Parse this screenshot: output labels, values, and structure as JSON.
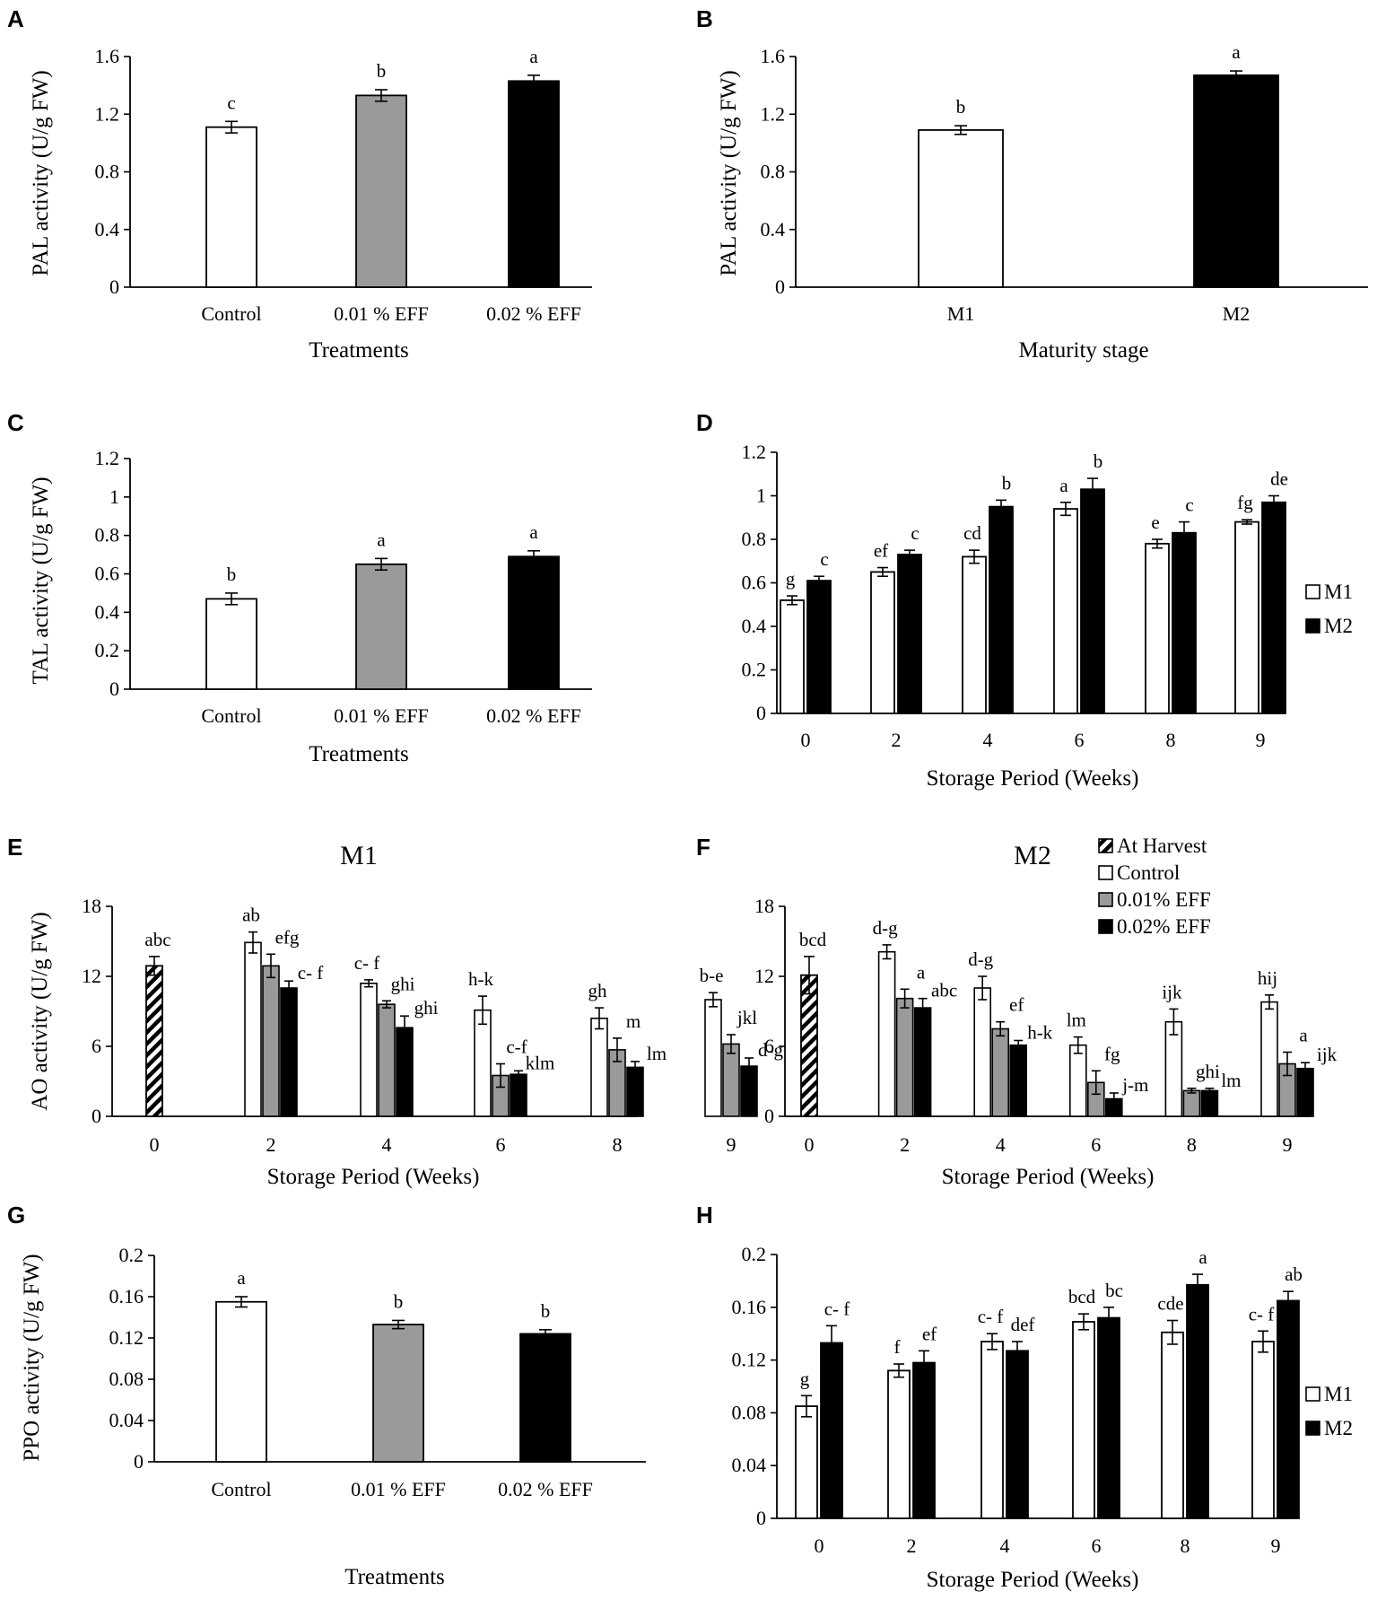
{
  "chart_data": [
    {
      "panel": "A",
      "type": "bar",
      "categories": [
        "Control",
        "0.01 % EFF",
        "0.02 % EFF"
      ],
      "series": [
        {
          "name": "PAL",
          "values": [
            1.11,
            1.33,
            1.43
          ],
          "errors": [
            0.04,
            0.04,
            0.04
          ]
        }
      ],
      "sig": [
        "c",
        "b",
        "a"
      ],
      "ylim": [
        0,
        1.6
      ],
      "ticks": [
        "0",
        "0.4",
        "0.8",
        "1.2",
        "1.6"
      ],
      "tick_values": [
        0,
        0.4,
        0.8,
        1.2,
        1.6
      ],
      "xlabel": "Treatments",
      "ylabel": "PAL activity (U/g FW)",
      "title": ""
    },
    {
      "panel": "B",
      "type": "bar",
      "categories": [
        "M1",
        "M2"
      ],
      "series": [
        {
          "name": "PAL",
          "values": [
            1.09,
            1.47
          ],
          "errors": [
            0.03,
            0.03
          ]
        }
      ],
      "sig": [
        "b",
        "a"
      ],
      "ylim": [
        0,
        1.6
      ],
      "ticks": [
        "0",
        "0.4",
        "0.8",
        "1.2",
        "1.6"
      ],
      "tick_values": [
        0,
        0.4,
        0.8,
        1.2,
        1.6
      ],
      "xlabel": "Maturity stage",
      "ylabel": "PAL activity (U/g FW)",
      "title": ""
    },
    {
      "panel": "C",
      "type": "bar",
      "categories": [
        "Control",
        "0.01 % EFF",
        "0.02 % EFF"
      ],
      "series": [
        {
          "name": "TAL",
          "values": [
            0.47,
            0.65,
            0.69
          ],
          "errors": [
            0.03,
            0.03,
            0.03
          ]
        }
      ],
      "sig": [
        "b",
        "a",
        "a"
      ],
      "ylim": [
        0,
        1.2
      ],
      "ticks": [
        "0",
        "0.2",
        "0.4",
        "0.6",
        "0.8",
        "1",
        "1.2"
      ],
      "tick_values": [
        0,
        0.2,
        0.4,
        0.6,
        0.8,
        1.0,
        1.2
      ],
      "xlabel": "Treatments",
      "ylabel": "TAL activity (U/g FW)",
      "title": ""
    },
    {
      "panel": "D",
      "type": "bar",
      "categories": [
        "0",
        "2",
        "4",
        "6",
        "8",
        "9"
      ],
      "series": [
        {
          "name": "M1",
          "values": [
            0.52,
            0.65,
            0.72,
            0.94,
            0.78,
            0.88
          ],
          "errors": [
            0.02,
            0.02,
            0.03,
            0.03,
            0.02,
            0.01
          ],
          "sig": [
            "g",
            "ef",
            "cd",
            "a",
            "e",
            "fg"
          ]
        },
        {
          "name": "M2",
          "values": [
            0.61,
            0.73,
            0.95,
            1.03,
            0.83,
            0.97
          ],
          "errors": [
            0.02,
            0.02,
            0.03,
            0.05,
            0.05,
            0.03
          ],
          "sig": [
            "c",
            "c",
            "b",
            "b",
            "c",
            "de"
          ]
        }
      ],
      "ylim": [
        0,
        1.2
      ],
      "ticks": [
        "0",
        "0.2",
        "0.4",
        "0.6",
        "0.8",
        "1",
        "1.2"
      ],
      "tick_values": [
        0,
        0.2,
        0.4,
        0.6,
        0.8,
        1.0,
        1.2
      ],
      "xlabel": "Storage Period (Weeks)",
      "ylabel": "",
      "title": "",
      "legend": [
        "M1",
        "M2"
      ]
    },
    {
      "panel": "E",
      "type": "bar",
      "categories": [
        "0",
        "2",
        "4",
        "6",
        "8",
        "9"
      ],
      "harvest": {
        "value": 12.9,
        "error": 0.8,
        "sig": "abc"
      },
      "series": [
        {
          "name": "Control",
          "values": [
            null,
            14.9,
            11.4,
            9.1,
            8.4,
            10.0
          ],
          "errors": [
            null,
            0.9,
            0.3,
            1.2,
            0.9,
            0.6
          ],
          "sig": [
            null,
            "ab",
            "c- f",
            "h-k",
            "gh",
            "b-e"
          ]
        },
        {
          "name": "0.01% EFF",
          "values": [
            null,
            12.9,
            9.6,
            3.5,
            5.7,
            6.2
          ],
          "errors": [
            null,
            1.0,
            0.3,
            1.0,
            1.0,
            0.8
          ],
          "sig": [
            null,
            "efg",
            "ghi",
            "c-f",
            "m",
            "jkl"
          ]
        },
        {
          "name": "0.02% EFF",
          "values": [
            null,
            11.0,
            7.6,
            3.6,
            4.2,
            4.3
          ],
          "errors": [
            null,
            0.6,
            1.0,
            0.3,
            0.5,
            0.7
          ],
          "sig": [
            null,
            "c- f",
            "ghi",
            "klm",
            "lm",
            "d-g"
          ]
        }
      ],
      "ylim": [
        0,
        18
      ],
      "ticks": [
        "0",
        "6",
        "12",
        "18"
      ],
      "tick_values": [
        0,
        6,
        12,
        18
      ],
      "xlabel": "Storage Period (Weeks)",
      "ylabel": "AO activity (U/g FW)",
      "title": "M1"
    },
    {
      "panel": "F",
      "type": "bar",
      "categories": [
        "0",
        "2",
        "4",
        "6",
        "8",
        "9"
      ],
      "harvest": {
        "value": 12.1,
        "error": 1.6,
        "sig": "bcd"
      },
      "series": [
        {
          "name": "Control",
          "values": [
            null,
            14.1,
            11.0,
            6.1,
            8.1,
            9.8
          ],
          "errors": [
            null,
            0.6,
            1.0,
            0.7,
            1.1,
            0.6
          ],
          "sig": [
            null,
            "d-g",
            "d-g",
            "lm",
            "ijk",
            "hij"
          ]
        },
        {
          "name": "0.01% EFF",
          "values": [
            null,
            10.1,
            7.5,
            2.9,
            2.2,
            4.5
          ],
          "errors": [
            null,
            0.8,
            0.6,
            1.0,
            0.2,
            1.0
          ],
          "sig": [
            null,
            "a",
            "ef",
            "fg",
            "ghi",
            "a"
          ]
        },
        {
          "name": "0.02% EFF",
          "values": [
            null,
            9.3,
            6.1,
            1.5,
            2.2,
            4.1
          ],
          "errors": [
            null,
            0.8,
            0.4,
            0.5,
            0.2,
            0.5
          ],
          "sig": [
            null,
            "abc",
            "h-k",
            "j-m",
            "lm",
            "ijk"
          ]
        }
      ],
      "ylim": [
        0,
        18
      ],
      "ticks": [
        "0",
        "6",
        "12",
        "18"
      ],
      "tick_values": [
        0,
        6,
        12,
        18
      ],
      "xlabel": "Storage Period (Weeks)",
      "ylabel": "",
      "title": "M2",
      "legend": [
        "At Harvest",
        "Control",
        "0.01% EFF",
        "0.02% EFF"
      ]
    },
    {
      "panel": "G",
      "type": "bar",
      "categories": [
        "Control",
        "0.01 % EFF",
        "0.02 % EFF"
      ],
      "series": [
        {
          "name": "PPO",
          "values": [
            0.155,
            0.133,
            0.124
          ],
          "errors": [
            0.005,
            0.004,
            0.004
          ]
        }
      ],
      "sig": [
        "a",
        "b",
        "b"
      ],
      "ylim": [
        0,
        0.2
      ],
      "ticks": [
        "0",
        "0.04",
        "0.08",
        "0.12",
        "0.16",
        "0.2"
      ],
      "tick_values": [
        0,
        0.04,
        0.08,
        0.12,
        0.16,
        0.2
      ],
      "xlabel": "Treatments",
      "ylabel": "PPO activity (U/g FW)",
      "title": ""
    },
    {
      "panel": "H",
      "type": "bar",
      "categories": [
        "0",
        "2",
        "4",
        "6",
        "8",
        "9"
      ],
      "series": [
        {
          "name": "M1",
          "values": [
            0.085,
            0.112,
            0.134,
            0.149,
            0.141,
            0.134
          ],
          "errors": [
            0.008,
            0.005,
            0.006,
            0.006,
            0.009,
            0.008
          ],
          "sig": [
            "g",
            "f",
            "c- f",
            "bcd",
            "cde",
            "c- f"
          ]
        },
        {
          "name": "M2",
          "values": [
            0.133,
            0.118,
            0.127,
            0.152,
            0.177,
            0.165
          ],
          "errors": [
            0.013,
            0.009,
            0.007,
            0.008,
            0.008,
            0.007
          ],
          "sig": [
            "c- f",
            "ef",
            "def",
            "bc",
            "a",
            "ab"
          ]
        }
      ],
      "ylim": [
        0,
        0.2
      ],
      "ticks": [
        "0",
        "0.04",
        "0.08",
        "0.12",
        "0.16",
        "0.2"
      ],
      "tick_values": [
        0,
        0.04,
        0.08,
        0.12,
        0.16,
        0.2
      ],
      "xlabel": "Storage Period (Weeks)",
      "ylabel": "",
      "title": "",
      "legend": [
        "M1",
        "M2"
      ]
    }
  ],
  "colors": {
    "black": "#000000",
    "gray": "#9a9a9a",
    "white": "#ffffff"
  }
}
